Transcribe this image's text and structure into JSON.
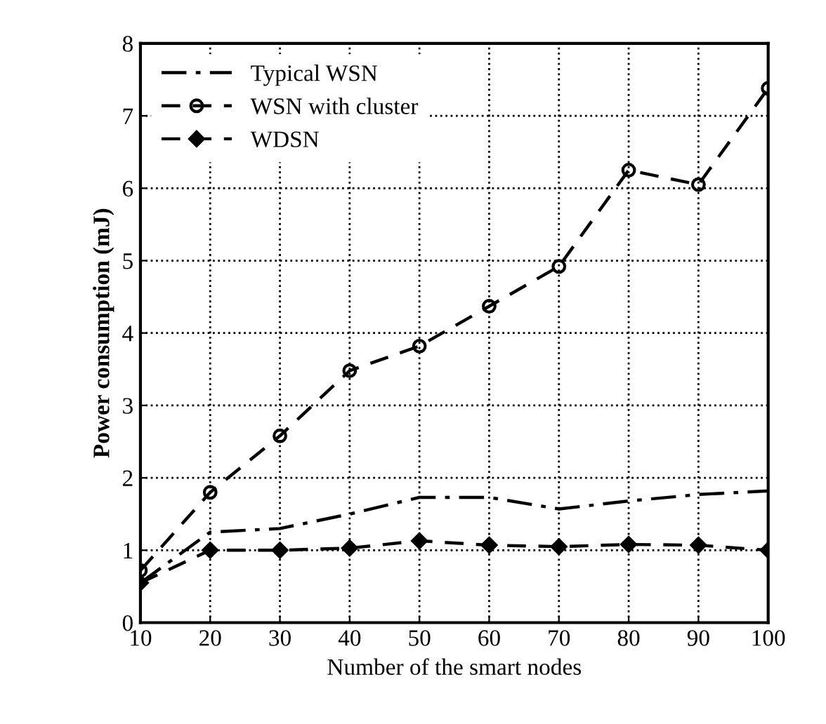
{
  "chart_data": {
    "type": "line",
    "xlabel": "Number of the smart nodes",
    "ylabel": "Power consumption (mJ)",
    "x": [
      10,
      20,
      30,
      40,
      50,
      60,
      70,
      80,
      90,
      100
    ],
    "series": [
      {
        "name": "Typical WSN",
        "color": "#000000",
        "line_style": "dashdot",
        "marker": "none",
        "values": [
          0.55,
          1.25,
          1.3,
          1.5,
          1.73,
          1.73,
          1.57,
          1.68,
          1.77,
          1.82
        ]
      },
      {
        "name": "WSN with cluster",
        "color": "#000000",
        "line_style": "dashed",
        "marker": "circle",
        "values": [
          0.72,
          1.8,
          2.58,
          3.48,
          3.82,
          4.37,
          4.92,
          6.25,
          6.05,
          7.38
        ]
      },
      {
        "name": "WDSN",
        "color": "#000000",
        "line_style": "dashed",
        "marker": "diamond",
        "values": [
          0.55,
          1.0,
          1.0,
          1.03,
          1.13,
          1.07,
          1.05,
          1.08,
          1.07,
          1.0
        ]
      }
    ],
    "xlim": [
      10,
      100
    ],
    "ylim": [
      0,
      8
    ],
    "xticks": [
      10,
      20,
      30,
      40,
      50,
      60,
      70,
      80,
      90,
      100
    ],
    "yticks": [
      0,
      1,
      2,
      3,
      4,
      5,
      6,
      7,
      8
    ],
    "grid": true,
    "legend": "top left"
  }
}
